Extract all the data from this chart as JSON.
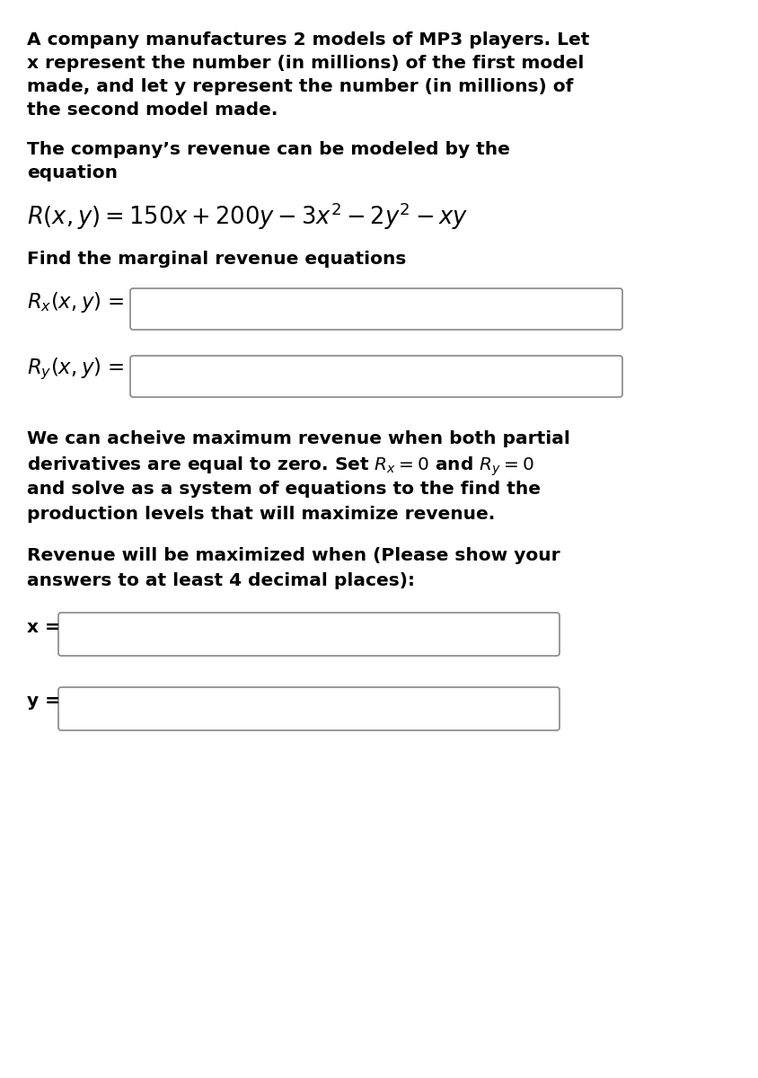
{
  "bg_color": "#ffffff",
  "text_color": "#000000",
  "body_fs": 14.5,
  "math_fs": 16.5,
  "label_fs": 14.5,
  "para1_lines": [
    "A company manufactures 2 models of MP3 players. Let",
    "x represent the number (in millions) of the first model",
    "made, and let y represent the number (in millions) of",
    "the second model made."
  ],
  "para2_lines": [
    "The company’s revenue can be modeled by the",
    "equation"
  ],
  "equation": "$R(x, y) = 150x + 200y - 3x^2 - 2y^2 - xy$",
  "para3": "Find the marginal revenue equations",
  "rx_label": "$R_x(x, y)$ =",
  "ry_label": "$R_y(x, y)$ =",
  "para4_line1": "We can acheive maximum revenue when both partial",
  "para4_line2": "derivatives are equal to zero. Set $R_x = 0$ and $R_y = 0$",
  "para4_line3": "and solve as a system of equations to the find the",
  "para4_line4": "production levels that will maximize revenue.",
  "para5_lines": [
    "Revenue will be maximized when (Please show your",
    "answers to at least 4 decimal places):"
  ],
  "x_label": "x =",
  "y_label": "y ="
}
